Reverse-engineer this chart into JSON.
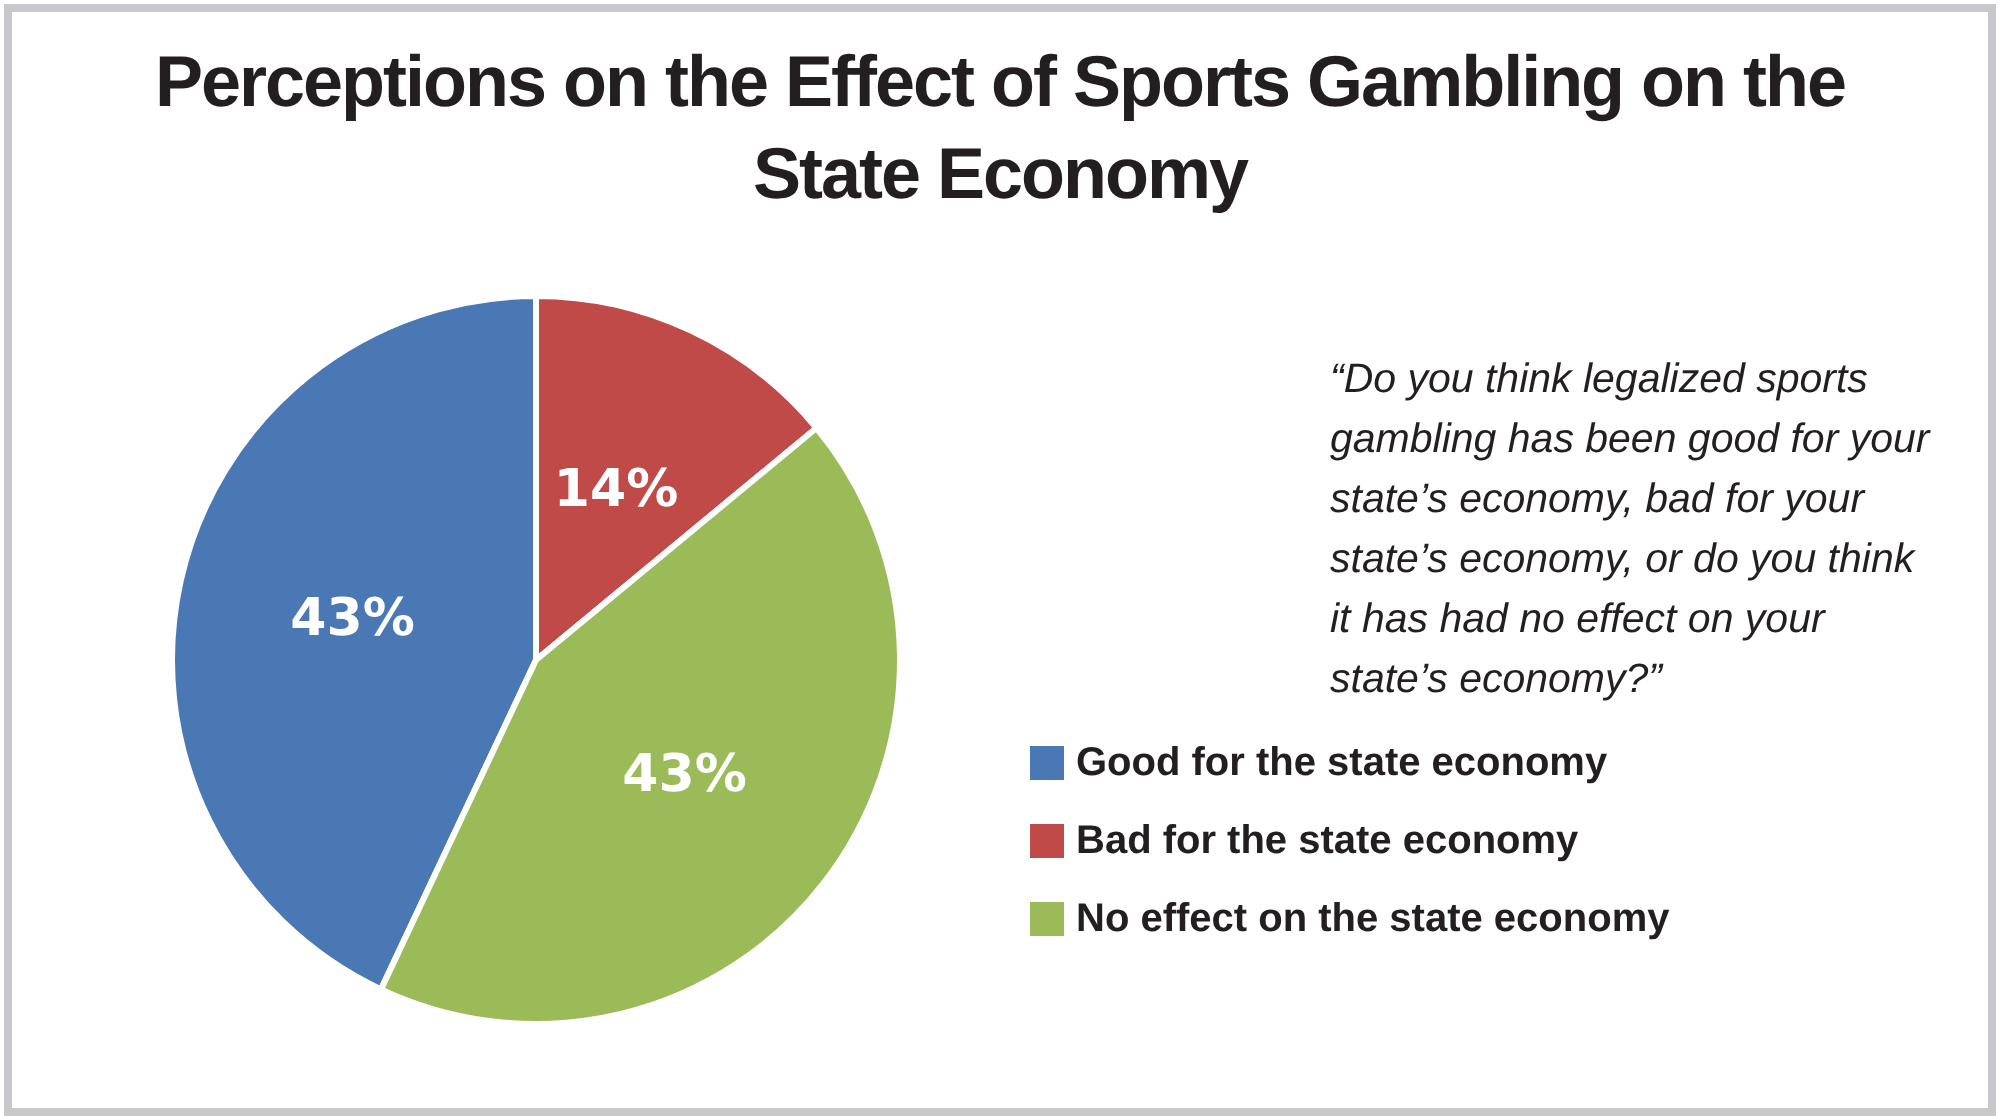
{
  "chart_data": {
    "type": "pie",
    "title": "Perceptions on the Effect of Sports Gambling on the State Economy",
    "subtitle": "“Do you think legalized sports gambling has been good for your state’s economy, bad for your state’s economy, or do you think it has had no effect on your state’s economy?”",
    "categories": [
      "Good for the state economy",
      "Bad for the state economy",
      "No effect on the state economy"
    ],
    "values": [
      43,
      14,
      43
    ],
    "colors": [
      "#4a78b5",
      "#bf4a48",
      "#9bbb59"
    ],
    "value_labels": [
      "43%",
      "14%",
      "43%"
    ],
    "legend": "right"
  }
}
